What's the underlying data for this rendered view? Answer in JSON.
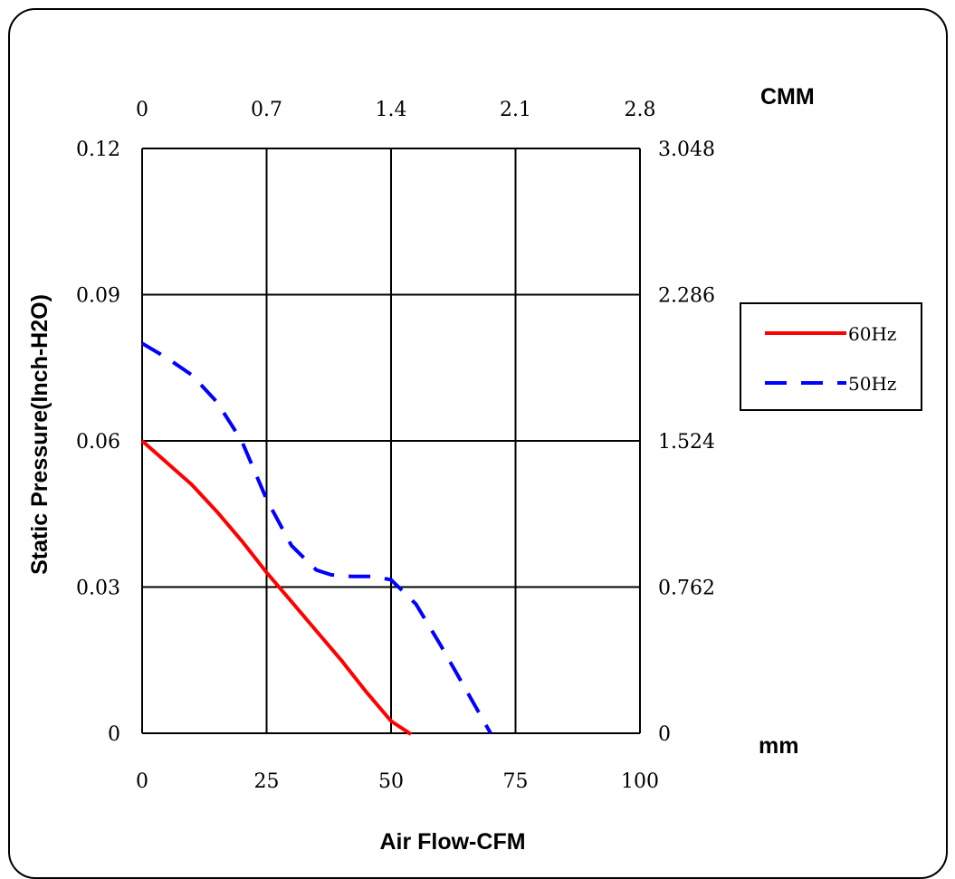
{
  "chart_data": {
    "type": "line",
    "xlabel": "Air Flow-CFM",
    "ylabel": "Static Pressure(Inch-H2O)",
    "x_unit_label": "mm",
    "top_axis_unit": "CMM",
    "xlim": [
      0,
      100
    ],
    "ylim": [
      0,
      0.12
    ],
    "x_ticks": [
      "0",
      "25",
      "50",
      "75",
      "100"
    ],
    "top_ticks": [
      "0",
      "0.7",
      "1.4",
      "2.1",
      "2.8"
    ],
    "y_ticks": [
      "0",
      "0.03",
      "0.06",
      "0.09",
      "0.12"
    ],
    "right_ticks": [
      "0",
      "0.762",
      "1.524",
      "2.286",
      "3.048"
    ],
    "grid": true,
    "legend_position": "right",
    "series": [
      {
        "name": "60Hz",
        "color": "#ff0000",
        "style": "solid",
        "x": [
          0,
          5,
          10,
          15,
          20,
          25,
          30,
          35,
          40,
          45,
          50,
          54
        ],
        "y": [
          0.06,
          0.0555,
          0.051,
          0.0455,
          0.0395,
          0.033,
          0.027,
          0.021,
          0.015,
          0.0085,
          0.0025,
          -0.0002
        ]
      },
      {
        "name": "50Hz",
        "color": "#0000ff",
        "style": "dashed",
        "x": [
          0,
          5,
          10,
          15,
          20,
          25,
          30,
          35,
          38,
          42,
          46,
          50,
          55,
          60,
          65,
          70
        ],
        "y": [
          0.08,
          0.077,
          0.0735,
          0.068,
          0.06,
          0.048,
          0.0385,
          0.0335,
          0.0325,
          0.0322,
          0.0322,
          0.0315,
          0.0265,
          0.018,
          0.009,
          0.0
        ]
      }
    ]
  }
}
